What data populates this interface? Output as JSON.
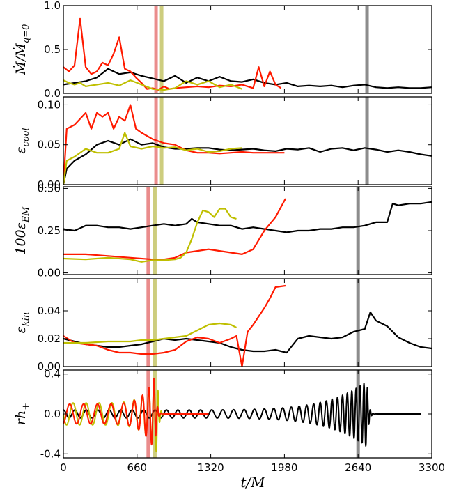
{
  "chart_data": {
    "type": "line",
    "xlabel": "t/M",
    "xlim": [
      0,
      3300
    ],
    "xticks": [
      "0",
      "660",
      "1320",
      "1980",
      "2640",
      "3300"
    ],
    "series_colors": {
      "black": "#000000",
      "red": "#ff1a00",
      "yellow": "#bfbf00"
    },
    "panels": [
      {
        "ylabel_parts": [
          "Ṁ/Ṁ",
          "q=0"
        ],
        "ylim": [
          0,
          1.0
        ],
        "yticks": [
          "1.0",
          "0.5",
          "0.0"
        ],
        "yticks_values": [
          1.0,
          0.5,
          0.0
        ],
        "markers": [
          {
            "x": 2720,
            "color": "#808080"
          },
          {
            "x": 830,
            "color": "#e88080"
          },
          {
            "x": 880,
            "color": "#c8c870"
          }
        ],
        "series": [
          {
            "color": "black",
            "x": [
              0,
              100,
              200,
              300,
              400,
              500,
              600,
              700,
              800,
              900,
              1000,
              1100,
              1200,
              1300,
              1400,
              1500,
              1600,
              1700,
              1800,
              1900,
              2000,
              2100,
              2200,
              2300,
              2400,
              2500,
              2600,
              2700,
              2800,
              2900,
              3000,
              3100,
              3200,
              3300
            ],
            "y": [
              0.1,
              0.12,
              0.14,
              0.18,
              0.28,
              0.22,
              0.24,
              0.2,
              0.17,
              0.14,
              0.2,
              0.12,
              0.18,
              0.14,
              0.19,
              0.14,
              0.13,
              0.16,
              0.12,
              0.1,
              0.12,
              0.08,
              0.09,
              0.08,
              0.09,
              0.07,
              0.09,
              0.1,
              0.07,
              0.06,
              0.07,
              0.06,
              0.06,
              0.07
            ]
          },
          {
            "color": "red",
            "x": [
              0,
              50,
              100,
              150,
              200,
              250,
              300,
              350,
              400,
              450,
              500,
              550,
              600,
              650,
              700,
              750,
              800,
              850,
              900,
              950,
              1000,
              1100,
              1200,
              1300,
              1400,
              1500,
              1600,
              1700,
              1750,
              1800,
              1850,
              1900,
              1950
            ],
            "y": [
              0.3,
              0.25,
              0.32,
              0.85,
              0.3,
              0.22,
              0.25,
              0.35,
              0.32,
              0.45,
              0.64,
              0.28,
              0.25,
              0.18,
              0.12,
              0.05,
              0.06,
              0.04,
              0.08,
              0.05,
              0.06,
              0.07,
              0.08,
              0.07,
              0.09,
              0.08,
              0.1,
              0.06,
              0.3,
              0.08,
              0.25,
              0.1,
              0.06
            ]
          },
          {
            "color": "yellow",
            "x": [
              0,
              50,
              100,
              150,
              200,
              300,
              400,
              500,
              600,
              700,
              800,
              900,
              1000,
              1100,
              1200,
              1300,
              1400,
              1500,
              1600
            ],
            "y": [
              0.15,
              0.12,
              0.1,
              0.12,
              0.08,
              0.1,
              0.12,
              0.09,
              0.15,
              0.1,
              0.05,
              0.04,
              0.06,
              0.14,
              0.1,
              0.14,
              0.07,
              0.1,
              0.05
            ]
          }
        ]
      },
      {
        "ylabel_parts": [
          "ε",
          "cool"
        ],
        "ylim": [
          0,
          0.11
        ],
        "yticks": [
          "0.10",
          "0.05",
          "0.00"
        ],
        "yticks_values": [
          0.1,
          0.05,
          0.0
        ],
        "markers": [
          {
            "x": 2720,
            "color": "#808080"
          },
          {
            "x": 830,
            "color": "#e88080"
          },
          {
            "x": 880,
            "color": "#c8c870"
          }
        ],
        "series": [
          {
            "color": "black",
            "x": [
              0,
              30,
              100,
              200,
              300,
              400,
              500,
              600,
              700,
              800,
              900,
              1000,
              1100,
              1200,
              1300,
              1400,
              1500,
              1600,
              1700,
              1800,
              1900,
              2000,
              2100,
              2200,
              2300,
              2400,
              2500,
              2600,
              2700,
              2800,
              2900,
              3000,
              3100,
              3200,
              3300
            ],
            "y": [
              0.0,
              0.02,
              0.03,
              0.038,
              0.05,
              0.055,
              0.05,
              0.057,
              0.05,
              0.052,
              0.047,
              0.045,
              0.045,
              0.046,
              0.046,
              0.044,
              0.043,
              0.044,
              0.045,
              0.043,
              0.042,
              0.045,
              0.044,
              0.046,
              0.041,
              0.045,
              0.046,
              0.043,
              0.046,
              0.044,
              0.041,
              0.043,
              0.041,
              0.038,
              0.036
            ]
          },
          {
            "color": "red",
            "x": [
              0,
              30,
              100,
              200,
              250,
              300,
              350,
              400,
              450,
              500,
              550,
              600,
              650,
              700,
              800,
              900,
              1000,
              1100,
              1200,
              1300,
              1400,
              1500,
              1600,
              1700,
              1800,
              1900,
              1980
            ],
            "y": [
              0.0,
              0.07,
              0.075,
              0.09,
              0.07,
              0.09,
              0.085,
              0.09,
              0.07,
              0.085,
              0.08,
              0.1,
              0.07,
              0.065,
              0.057,
              0.052,
              0.05,
              0.043,
              0.04,
              0.04,
              0.039,
              0.04,
              0.041,
              0.04,
              0.04,
              0.04,
              0.04
            ]
          },
          {
            "color": "yellow",
            "x": [
              0,
              30,
              100,
              200,
              300,
              400,
              500,
              550,
              600,
              700,
              800,
              900,
              1000,
              1100,
              1200,
              1300,
              1400,
              1500,
              1600
            ],
            "y": [
              0.0,
              0.03,
              0.035,
              0.045,
              0.04,
              0.04,
              0.045,
              0.065,
              0.048,
              0.045,
              0.048,
              0.046,
              0.047,
              0.043,
              0.045,
              0.041,
              0.042,
              0.045,
              0.046
            ]
          }
        ]
      },
      {
        "ylabel_parts": [
          "100ε",
          "EM"
        ],
        "ylim": [
          -0.01,
          0.51
        ],
        "yticks": [
          "0.50",
          "0.25",
          "0.00"
        ],
        "yticks_values": [
          0.5,
          0.25,
          0.0
        ],
        "markers": [
          {
            "x": 2640,
            "color": "#808080"
          },
          {
            "x": 760,
            "color": "#e88080"
          },
          {
            "x": 820,
            "color": "#c8c870"
          }
        ],
        "series": [
          {
            "color": "black",
            "x": [
              0,
              100,
              200,
              300,
              400,
              500,
              600,
              700,
              800,
              900,
              1000,
              1100,
              1150,
              1200,
              1300,
              1400,
              1500,
              1600,
              1700,
              1800,
              1900,
              2000,
              2100,
              2200,
              2300,
              2400,
              2500,
              2600,
              2700,
              2800,
              2900,
              2950,
              3000,
              3100,
              3200,
              3300
            ],
            "y": [
              0.26,
              0.25,
              0.28,
              0.28,
              0.27,
              0.27,
              0.26,
              0.27,
              0.28,
              0.29,
              0.28,
              0.29,
              0.32,
              0.3,
              0.29,
              0.28,
              0.28,
              0.26,
              0.27,
              0.26,
              0.25,
              0.24,
              0.25,
              0.25,
              0.26,
              0.26,
              0.27,
              0.27,
              0.28,
              0.3,
              0.3,
              0.41,
              0.4,
              0.41,
              0.41,
              0.42
            ]
          },
          {
            "color": "red",
            "x": [
              0,
              200,
              400,
              600,
              800,
              900,
              1000,
              1100,
              1200,
              1300,
              1400,
              1500,
              1600,
              1700,
              1800,
              1900,
              1990
            ],
            "y": [
              0.11,
              0.11,
              0.1,
              0.09,
              0.08,
              0.08,
              0.09,
              0.12,
              0.13,
              0.14,
              0.13,
              0.12,
              0.11,
              0.14,
              0.25,
              0.33,
              0.44
            ]
          },
          {
            "color": "yellow",
            "x": [
              0,
              200,
              400,
              600,
              700,
              800,
              900,
              1000,
              1050,
              1100,
              1150,
              1200,
              1250,
              1300,
              1350,
              1400,
              1450,
              1500,
              1550
            ],
            "y": [
              0.085,
              0.08,
              0.09,
              0.08,
              0.065,
              0.075,
              0.075,
              0.08,
              0.09,
              0.12,
              0.2,
              0.3,
              0.37,
              0.36,
              0.33,
              0.38,
              0.38,
              0.33,
              0.32
            ]
          }
        ]
      },
      {
        "ylabel_parts": [
          "ε",
          "kin"
        ],
        "ylim": [
          0,
          0.063
        ],
        "yticks": [
          "0.04",
          "0.02",
          "0.00"
        ],
        "yticks_values": [
          0.04,
          0.02,
          0.0
        ],
        "markers": [
          {
            "x": 2640,
            "color": "#808080"
          },
          {
            "x": 760,
            "color": "#e88080"
          },
          {
            "x": 820,
            "color": "#c8c870"
          }
        ],
        "series": [
          {
            "color": "black",
            "x": [
              0,
              100,
              200,
              300,
              400,
              500,
              600,
              700,
              800,
              900,
              1000,
              1100,
              1200,
              1300,
              1400,
              1500,
              1600,
              1700,
              1800,
              1900,
              2000,
              2100,
              2200,
              2300,
              2400,
              2500,
              2600,
              2700,
              2750,
              2800,
              2900,
              3000,
              3100,
              3200,
              3300
            ],
            "y": [
              0.02,
              0.018,
              0.016,
              0.015,
              0.014,
              0.014,
              0.015,
              0.016,
              0.018,
              0.02,
              0.019,
              0.02,
              0.019,
              0.018,
              0.017,
              0.014,
              0.012,
              0.011,
              0.011,
              0.012,
              0.01,
              0.02,
              0.022,
              0.021,
              0.02,
              0.021,
              0.025,
              0.027,
              0.039,
              0.033,
              0.029,
              0.021,
              0.017,
              0.014,
              0.013
            ]
          },
          {
            "color": "red",
            "x": [
              0,
              100,
              200,
              300,
              400,
              500,
              600,
              700,
              800,
              900,
              1000,
              1100,
              1200,
              1300,
              1400,
              1500,
              1550,
              1600,
              1650,
              1700,
              1750,
              1800,
              1850,
              1900,
              1990
            ],
            "y": [
              0.022,
              0.017,
              0.016,
              0.015,
              0.012,
              0.01,
              0.01,
              0.009,
              0.009,
              0.01,
              0.012,
              0.018,
              0.021,
              0.02,
              0.017,
              0.02,
              0.022,
              0.0,
              0.025,
              0.03,
              0.036,
              0.042,
              0.049,
              0.057,
              0.058
            ]
          },
          {
            "color": "yellow",
            "x": [
              0,
              200,
              400,
              600,
              700,
              800,
              900,
              1000,
              1100,
              1200,
              1300,
              1400,
              1500,
              1550
            ],
            "y": [
              0.017,
              0.017,
              0.018,
              0.018,
              0.019,
              0.019,
              0.02,
              0.021,
              0.022,
              0.026,
              0.03,
              0.031,
              0.03,
              0.028
            ]
          }
        ]
      },
      {
        "ylabel_parts": [
          "rh",
          "+"
        ],
        "ylim": [
          -0.44,
          0.44
        ],
        "yticks": [
          "0.4",
          "0.0",
          "-0.4"
        ],
        "yticks_values": [
          0.4,
          0.0,
          -0.4
        ],
        "markers": [
          {
            "x": 2640,
            "color": "#808080"
          },
          {
            "x": 760,
            "color": "#e88080"
          },
          {
            "x": 820,
            "color": "#c8c870"
          }
        ],
        "waves": [
          {
            "color": "black",
            "t0": 0,
            "tmerge": 2720,
            "tend": 3200,
            "amp0": 0.04,
            "ampMax": 0.33,
            "cycles": 26.5,
            "phase": 0
          },
          {
            "color": "yellow",
            "t0": 0,
            "tmerge": 840,
            "tend": 920,
            "amp0": 0.11,
            "ampMax": 0.4,
            "cycles": 7.2,
            "phase": 1.6
          },
          {
            "color": "red",
            "t0": 0,
            "tmerge": 820,
            "tend": 1300,
            "amp0": 0.1,
            "ampMax": 0.38,
            "cycles": 6.6,
            "phase": 3.4
          }
        ]
      }
    ]
  }
}
